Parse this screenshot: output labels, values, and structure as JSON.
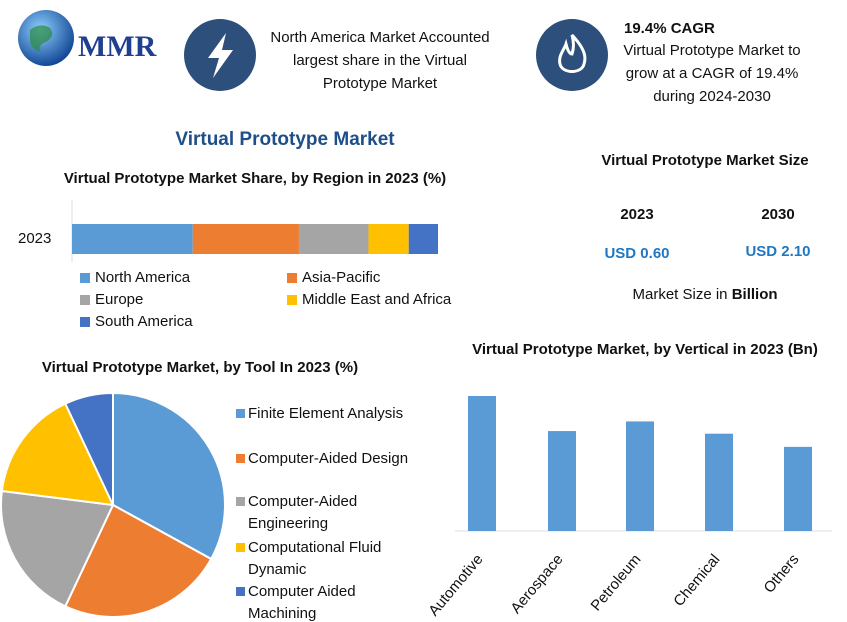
{
  "header": {
    "logo": "MMR",
    "highlight_1": "North America Market Accounted largest share in the Virtual Prototype Market",
    "highlight_2_title": "19.4% CAGR",
    "highlight_2": "Virtual Prototype Market to grow at a CAGR of 19.4% during 2024-2030"
  },
  "title": "Virtual Prototype Market",
  "market_size": {
    "title": "Virtual Prototype Market Size",
    "years": [
      "2023",
      "2030"
    ],
    "values": [
      "USD 0.60",
      "USD 2.10"
    ],
    "note": "Market Size in ",
    "note_unit": "Billion"
  },
  "chart_data": [
    {
      "type": "bar",
      "stacked": true,
      "horizontal": true,
      "title": "Virtual Prototype Market Share, by Region in 2023 (%)",
      "categories": [
        "2023"
      ],
      "series": [
        {
          "name": "North America",
          "color": "#5b9bd5",
          "values": [
            33
          ]
        },
        {
          "name": "Asia-Pacific",
          "color": "#ed7d31",
          "values": [
            29
          ]
        },
        {
          "name": "Europe",
          "color": "#a5a5a5",
          "values": [
            19
          ]
        },
        {
          "name": "Middle East and Africa",
          "color": "#ffc000",
          "values": [
            11
          ]
        },
        {
          "name": "South America",
          "color": "#4472c4",
          "values": [
            8
          ]
        }
      ]
    },
    {
      "type": "pie",
      "title": "Virtual Prototype Market, by Tool In 2023 (%)",
      "categories": [
        "Finite Element Analysis",
        "Computer-Aided Design",
        "Computer-Aided Engineering",
        "Computational Fluid Dynamic",
        "Computer Aided Machining"
      ],
      "values": [
        33,
        24,
        20,
        16,
        7
      ],
      "colors": [
        "#5b9bd5",
        "#ed7d31",
        "#a5a5a5",
        "#ffc000",
        "#4472c4"
      ]
    },
    {
      "type": "bar",
      "title": "Virtual Prototype Market, by Vertical in 2023 (Bn)",
      "categories": [
        "Automotive",
        "Aerospace",
        "Petroleum",
        "Chemical",
        "Others"
      ],
      "values": [
        0.154,
        0.114,
        0.125,
        0.111,
        0.096
      ],
      "color": "#5b9bd5"
    }
  ]
}
